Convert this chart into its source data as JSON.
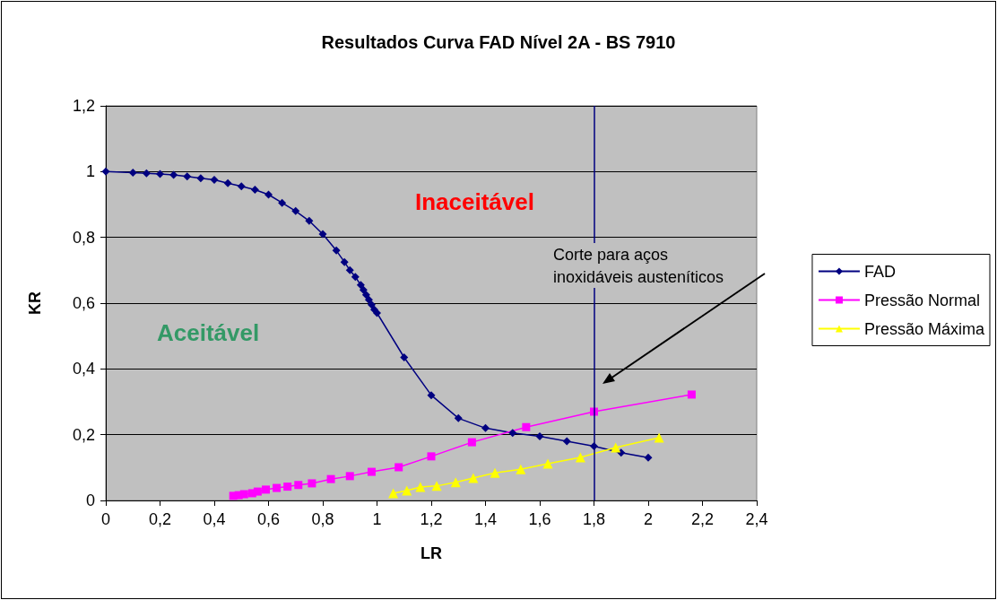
{
  "chart_data": {
    "type": "line",
    "title": "Resultados Curva FAD Nível 2A - BS 7910",
    "xlabel": "LR",
    "ylabel": "KR",
    "xlim": [
      0,
      2.4
    ],
    "ylim": [
      0,
      1.2
    ],
    "xticks": [
      0,
      {
        "value": 0.2,
        "label": "0,2"
      },
      {
        "value": 0.4,
        "label": "0,4"
      },
      {
        "value": 0.6,
        "label": "0,6"
      },
      {
        "value": 0.8,
        "label": "0,8"
      },
      1,
      {
        "value": 1.2,
        "label": "1,2"
      },
      {
        "value": 1.4,
        "label": "1,4"
      },
      {
        "value": 1.6,
        "label": "1,6"
      },
      {
        "value": 1.8,
        "label": "1,8"
      },
      2,
      {
        "value": 2.2,
        "label": "2,2"
      },
      {
        "value": 2.4,
        "label": "2,4"
      }
    ],
    "yticks": [
      0,
      {
        "value": 0.2,
        "label": "0,2"
      },
      {
        "value": 0.4,
        "label": "0,4"
      },
      {
        "value": 0.6,
        "label": "0,6"
      },
      {
        "value": 0.8,
        "label": "0,8"
      },
      1,
      {
        "value": 1.2,
        "label": "1,2"
      }
    ],
    "grid": "y",
    "legend": "right",
    "series": [
      {
        "name": "FAD",
        "color": "#000080",
        "marker": "diamond",
        "x": [
          0,
          0.1,
          0.15,
          0.2,
          0.25,
          0.3,
          0.35,
          0.4,
          0.45,
          0.5,
          0.55,
          0.6,
          0.65,
          0.7,
          0.75,
          0.8,
          0.85,
          0.88,
          0.9,
          0.92,
          0.94,
          0.95,
          0.96,
          0.97,
          0.98,
          0.99,
          1.0,
          1.1,
          1.2,
          1.3,
          1.4,
          1.5,
          1.6,
          1.7,
          1.8,
          1.9,
          2.0
        ],
        "values": [
          1,
          0.997,
          0.995,
          0.993,
          0.99,
          0.985,
          0.98,
          0.975,
          0.965,
          0.955,
          0.945,
          0.93,
          0.905,
          0.88,
          0.85,
          0.81,
          0.76,
          0.725,
          0.7,
          0.68,
          0.655,
          0.64,
          0.625,
          0.61,
          0.595,
          0.58,
          0.57,
          0.435,
          0.32,
          0.25,
          0.22,
          0.205,
          0.195,
          0.18,
          0.165,
          0.145,
          0.13
        ]
      },
      {
        "name": "Pressão Normal",
        "color": "#ff00ff",
        "marker": "square",
        "x": [
          0.47,
          0.49,
          0.51,
          0.54,
          0.56,
          0.59,
          0.63,
          0.67,
          0.71,
          0.76,
          0.83,
          0.9,
          0.98,
          1.08,
          1.2,
          1.35,
          1.55,
          1.8,
          2.16
        ],
        "values": [
          0.014,
          0.016,
          0.019,
          0.022,
          0.027,
          0.033,
          0.038,
          0.042,
          0.047,
          0.052,
          0.065,
          0.074,
          0.087,
          0.101,
          0.134,
          0.177,
          0.223,
          0.27,
          0.322
        ]
      },
      {
        "name": "Pressão Máxima",
        "color": "#ffff00",
        "marker": "triangle",
        "x": [
          1.06,
          1.11,
          1.16,
          1.22,
          1.29,
          1.355,
          1.435,
          1.53,
          1.63,
          1.75,
          1.88,
          2.04
        ],
        "values": [
          0.022,
          0.03,
          0.041,
          0.044,
          0.055,
          0.068,
          0.084,
          0.095,
          0.112,
          0.131,
          0.161,
          0.191
        ]
      }
    ],
    "ref_lines": [
      {
        "axis": "x",
        "value": 1.8,
        "color": "#000080"
      }
    ],
    "annotations": [
      "Inaceitável",
      "Aceitável",
      "Corte para aços\ninoxidáveis austeníticos"
    ]
  }
}
